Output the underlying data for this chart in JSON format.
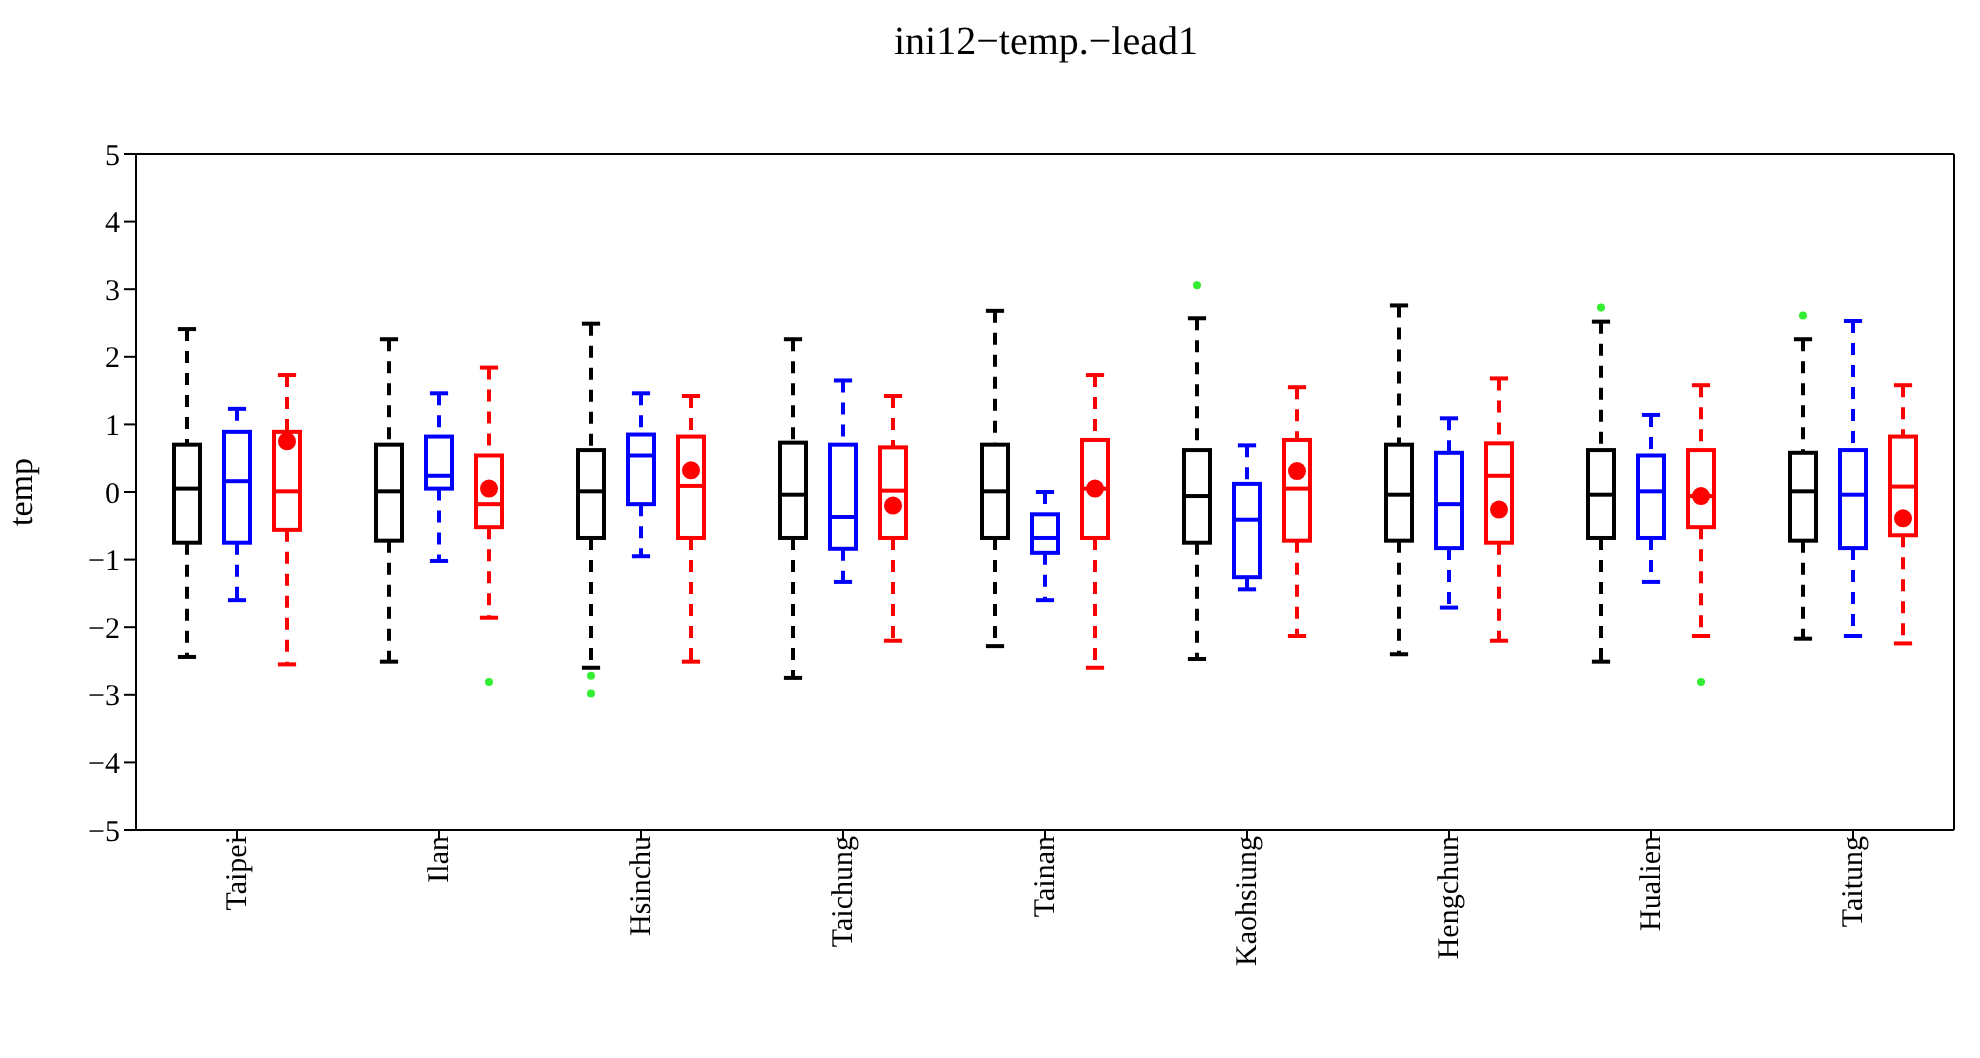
{
  "chart_data": {
    "type": "box",
    "title": "ini12−temp.−lead1",
    "ylabel": "temp",
    "categories": [
      "Taipei",
      "Ilan",
      "Hsinchu",
      "Taichung",
      "Tainan",
      "Kaohsiung",
      "Hengchun",
      "Hualien",
      "Taitung"
    ],
    "ylim": [
      -5,
      5
    ],
    "yticks": [
      -5,
      -4,
      -3,
      -2,
      -1,
      0,
      1,
      2,
      3,
      4,
      5
    ],
    "grid": false,
    "legend": false,
    "line_style": "dashed",
    "series": [
      {
        "color": "#000000",
        "boxes": [
          {
            "low": -2.44,
            "q1": -0.75,
            "median": 0.05,
            "q3": 0.7,
            "high": 2.41
          },
          {
            "low": -2.51,
            "q1": -0.72,
            "median": 0.01,
            "q3": 0.7,
            "high": 2.26
          },
          {
            "low": -2.6,
            "q1": -0.68,
            "median": 0.01,
            "q3": 0.62,
            "high": 2.49,
            "outliers": [
              -2.72,
              -2.98
            ]
          },
          {
            "low": -2.75,
            "q1": -0.68,
            "median": -0.04,
            "q3": 0.73,
            "high": 2.26
          },
          {
            "low": -2.28,
            "q1": -0.68,
            "median": 0.01,
            "q3": 0.7,
            "high": 2.68
          },
          {
            "low": -2.47,
            "q1": -0.75,
            "median": -0.06,
            "q3": 0.62,
            "high": 2.57,
            "outliers": [
              3.06
            ]
          },
          {
            "low": -2.4,
            "q1": -0.72,
            "median": -0.04,
            "q3": 0.7,
            "high": 2.76
          },
          {
            "low": -2.51,
            "q1": -0.68,
            "median": -0.04,
            "q3": 0.62,
            "high": 2.52,
            "outliers": [
              2.73
            ]
          },
          {
            "low": -2.17,
            "q1": -0.72,
            "median": 0.01,
            "q3": 0.58,
            "high": 2.26,
            "outliers": [
              2.61
            ]
          }
        ]
      },
      {
        "color": "#0000ff",
        "boxes": [
          {
            "low": -1.6,
            "q1": -0.75,
            "median": 0.16,
            "q3": 0.89,
            "high": 1.23
          },
          {
            "low": -1.02,
            "q1": 0.05,
            "median": 0.24,
            "q3": 0.82,
            "high": 1.46
          },
          {
            "low": -0.95,
            "q1": -0.18,
            "median": 0.54,
            "q3": 0.85,
            "high": 1.46
          },
          {
            "low": -1.33,
            "q1": -0.84,
            "median": -0.37,
            "q3": 0.7,
            "high": 1.65
          },
          {
            "low": -1.6,
            "q1": -0.9,
            "median": -0.68,
            "q3": -0.33,
            "high": 0.0
          },
          {
            "low": -1.44,
            "q1": -1.26,
            "median": -0.41,
            "q3": 0.12,
            "high": 0.69
          },
          {
            "low": -1.71,
            "q1": -0.83,
            "median": -0.18,
            "q3": 0.58,
            "high": 1.09
          },
          {
            "low": -1.33,
            "q1": -0.68,
            "median": 0.01,
            "q3": 0.54,
            "high": 1.14
          },
          {
            "low": -2.13,
            "q1": -0.83,
            "median": -0.04,
            "q3": 0.62,
            "high": 2.53
          }
        ]
      },
      {
        "color": "#ff0000",
        "boxes": [
          {
            "low": -2.55,
            "q1": -0.56,
            "median": 0.01,
            "q3": 0.89,
            "high": 1.73,
            "mean": 0.75
          },
          {
            "low": -1.86,
            "q1": -0.52,
            "median": -0.18,
            "q3": 0.54,
            "high": 1.84,
            "mean": 0.05,
            "outliers": [
              -2.81
            ]
          },
          {
            "low": -2.51,
            "q1": -0.68,
            "median": 0.09,
            "q3": 0.82,
            "high": 1.42,
            "mean": 0.32
          },
          {
            "low": -2.2,
            "q1": -0.68,
            "median": 0.02,
            "q3": 0.66,
            "high": 1.42,
            "mean": -0.2
          },
          {
            "low": -2.6,
            "q1": -0.68,
            "median": 0.05,
            "q3": 0.77,
            "high": 1.73,
            "mean": 0.05
          },
          {
            "low": -2.13,
            "q1": -0.72,
            "median": 0.05,
            "q3": 0.77,
            "high": 1.55,
            "mean": 0.31
          },
          {
            "low": -2.2,
            "q1": -0.75,
            "median": 0.24,
            "q3": 0.72,
            "high": 1.68,
            "mean": -0.26
          },
          {
            "low": -2.13,
            "q1": -0.52,
            "median": -0.06,
            "q3": 0.62,
            "high": 1.58,
            "mean": -0.06,
            "outliers": [
              -2.81
            ]
          },
          {
            "low": -2.24,
            "q1": -0.64,
            "median": 0.08,
            "q3": 0.82,
            "high": 1.58,
            "mean": -0.39
          }
        ]
      }
    ]
  }
}
